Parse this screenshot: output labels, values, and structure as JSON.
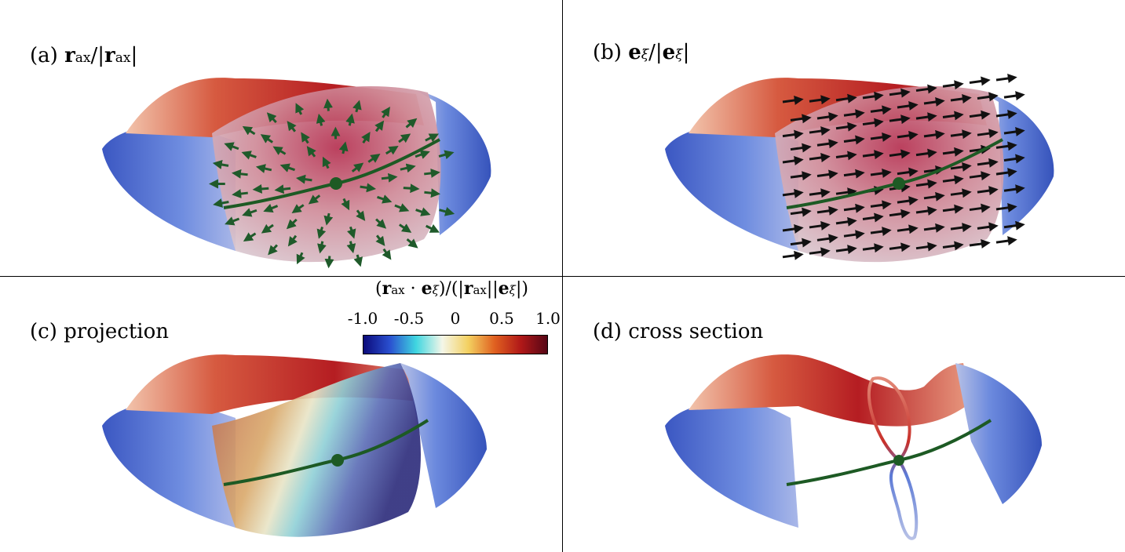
{
  "panels": [
    {
      "id": "a",
      "label_prefix": "(a) ",
      "label_math": "r_ax/|r_ax|"
    },
    {
      "id": "b",
      "label_prefix": "(b) ",
      "label_math": "e_ξ/|e_ξ|"
    },
    {
      "id": "c",
      "label_prefix": "(c) ",
      "label_text": "projection"
    },
    {
      "id": "d",
      "label_prefix": "(d) ",
      "label_text": "cross section"
    }
  ],
  "colorbar": {
    "title": "(r_ax · e_ξ)/(|r_ax||e_ξ|)",
    "ticks": [
      "-1.0",
      "-0.5",
      "0",
      "0.5",
      "1.0"
    ],
    "tick_values": [
      -1.0,
      -0.5,
      0,
      0.5,
      1.0
    ],
    "range": [
      -1.0,
      1.0
    ],
    "colormap": [
      "#0b0b7a",
      "#2a4fd0",
      "#3fd6e0",
      "#f4f6e8",
      "#f3d060",
      "#e06020",
      "#b01818",
      "#560616"
    ]
  },
  "colors": {
    "surface_blue": "#5b79d6",
    "surface_red": "#c8302a",
    "axis_curve": "#1d5a24",
    "arrow_green": "#1f5a2a",
    "arrow_black": "#111111",
    "divider": "#000000"
  },
  "icons": [
    "vector-field",
    "toroidal-surface",
    "magnetic-axis"
  ]
}
